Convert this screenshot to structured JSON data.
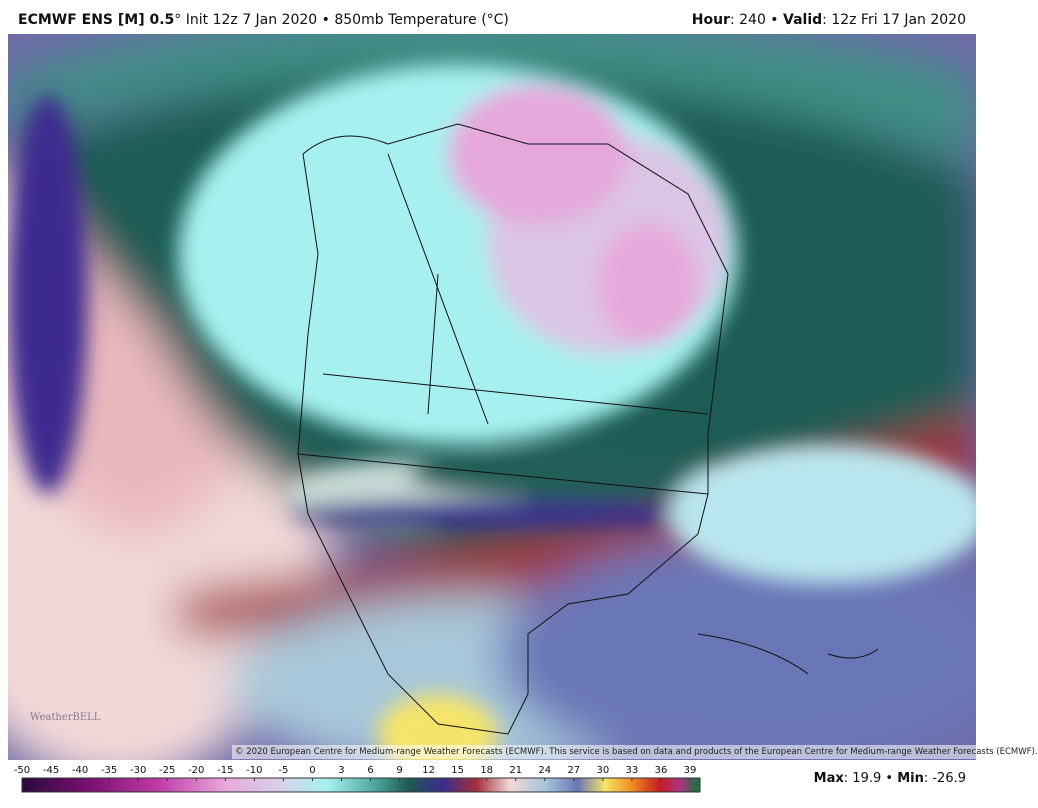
{
  "header": {
    "model": "ECMWF ENS [M] 0.5",
    "run_info": "° Init 12z 7 Jan 2020 • 850mb Temperature (°C)",
    "hour_label": "Hour",
    "hour_value": ": 240 • ",
    "valid_label": "Valid",
    "valid_value": ": 12z Fri 17 Jan 2020"
  },
  "colorbar": {
    "ticks": [
      -50,
      -45,
      -40,
      -35,
      -30,
      -25,
      -20,
      -15,
      -10,
      -5,
      0,
      3,
      6,
      9,
      12,
      15,
      18,
      21,
      24,
      27,
      30,
      33,
      36,
      39
    ]
  },
  "stats": {
    "max_label": "Max",
    "max": 19.9,
    "min_label": "Min",
    "min": -26.9
  },
  "copyright": "© 2020 European Centre for Medium-range Weather Forecasts (ECMWF). This service is based on data and products of the European Centre for Medium-range Weather Forecasts (ECMWF).",
  "logo": "WeatherBELL"
}
